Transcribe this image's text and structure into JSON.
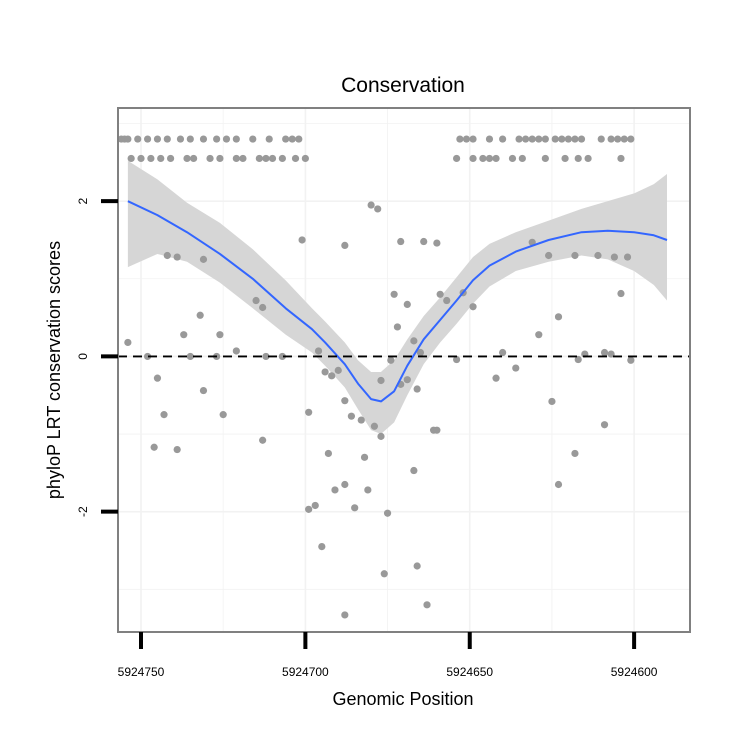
{
  "chart_data": {
    "type": "scatter",
    "title": "Conservation",
    "xlabel": "Genomic Position",
    "ylabel": "phyloP LRT conservation scores",
    "x_reversed": true,
    "xlim": [
      5924757,
      5924583
    ],
    "ylim": [
      -3.55,
      3.2
    ],
    "x_ticks": [
      5924750,
      5924700,
      5924650,
      5924600
    ],
    "x_tick_labels": [
      "5924750",
      "5924700",
      "5924650",
      "5924600"
    ],
    "y_ticks": [
      -2,
      0,
      2
    ],
    "y_tick_labels": [
      "-2",
      "0",
      "2"
    ],
    "grid": true,
    "reference_line": {
      "y": 0,
      "style": "dashed"
    },
    "colors": {
      "points": "#999999",
      "smooth_line": "#3366ff",
      "ribbon": "#d6d6d6",
      "panel_border": "#808080",
      "grid": "#f2f2f2"
    },
    "points": [
      [
        5924756,
        2.8
      ],
      [
        5924755,
        2.8
      ],
      [
        5924754,
        2.8
      ],
      [
        5924751,
        2.8
      ],
      [
        5924748,
        2.8
      ],
      [
        5924745,
        2.8
      ],
      [
        5924742,
        2.8
      ],
      [
        5924738,
        2.8
      ],
      [
        5924735,
        2.8
      ],
      [
        5924731,
        2.8
      ],
      [
        5924727,
        2.8
      ],
      [
        5924724,
        2.8
      ],
      [
        5924721,
        2.8
      ],
      [
        5924716,
        2.8
      ],
      [
        5924711,
        2.8
      ],
      [
        5924706,
        2.8
      ],
      [
        5924704,
        2.8
      ],
      [
        5924702,
        2.8
      ],
      [
        5924653,
        2.8
      ],
      [
        5924651,
        2.8
      ],
      [
        5924649,
        2.8
      ],
      [
        5924644,
        2.8
      ],
      [
        5924640,
        2.8
      ],
      [
        5924635,
        2.8
      ],
      [
        5924633,
        2.8
      ],
      [
        5924631,
        2.8
      ],
      [
        5924629,
        2.8
      ],
      [
        5924627,
        2.8
      ],
      [
        5924624,
        2.8
      ],
      [
        5924622,
        2.8
      ],
      [
        5924620,
        2.8
      ],
      [
        5924618,
        2.8
      ],
      [
        5924616,
        2.8
      ],
      [
        5924610,
        2.8
      ],
      [
        5924607,
        2.8
      ],
      [
        5924605,
        2.8
      ],
      [
        5924603,
        2.8
      ],
      [
        5924601,
        2.8
      ],
      [
        5924753,
        2.55
      ],
      [
        5924750,
        2.55
      ],
      [
        5924747,
        2.55
      ],
      [
        5924744,
        2.55
      ],
      [
        5924741,
        2.55
      ],
      [
        5924736,
        2.55
      ],
      [
        5924734,
        2.55
      ],
      [
        5924729,
        2.55
      ],
      [
        5924726,
        2.55
      ],
      [
        5924721,
        2.55
      ],
      [
        5924719,
        2.55
      ],
      [
        5924714,
        2.55
      ],
      [
        5924712,
        2.55
      ],
      [
        5924710,
        2.55
      ],
      [
        5924707,
        2.55
      ],
      [
        5924703,
        2.55
      ],
      [
        5924700,
        2.55
      ],
      [
        5924654,
        2.55
      ],
      [
        5924649,
        2.55
      ],
      [
        5924646,
        2.55
      ],
      [
        5924644,
        2.55
      ],
      [
        5924642,
        2.55
      ],
      [
        5924637,
        2.55
      ],
      [
        5924634,
        2.55
      ],
      [
        5924627,
        2.55
      ],
      [
        5924621,
        2.55
      ],
      [
        5924617,
        2.55
      ],
      [
        5924614,
        2.55
      ],
      [
        5924604,
        2.55
      ],
      [
        5924701,
        1.5
      ],
      [
        5924688,
        1.43
      ],
      [
        5924680,
        1.95
      ],
      [
        5924678,
        1.9
      ],
      [
        5924671,
        1.48
      ],
      [
        5924664,
        1.48
      ],
      [
        5924660,
        1.46
      ],
      [
        5924631,
        1.47
      ],
      [
        5924626,
        1.3
      ],
      [
        5924618,
        1.3
      ],
      [
        5924611,
        1.3
      ],
      [
        5924606,
        1.28
      ],
      [
        5924602,
        1.28
      ],
      [
        5924742,
        1.3
      ],
      [
        5924739,
        1.28
      ],
      [
        5924731,
        1.25
      ],
      [
        5924754,
        0.18
      ],
      [
        5924737,
        0.28
      ],
      [
        5924732,
        0.53
      ],
      [
        5924726,
        0.28
      ],
      [
        5924721,
        0.07
      ],
      [
        5924715,
        0.72
      ],
      [
        5924713,
        0.63
      ],
      [
        5924696,
        0.07
      ],
      [
        5924673,
        0.8
      ],
      [
        5924672,
        0.38
      ],
      [
        5924669,
        0.67
      ],
      [
        5924667,
        0.2
      ],
      [
        5924665,
        0.05
      ],
      [
        5924659,
        0.8
      ],
      [
        5924657,
        0.72
      ],
      [
        5924652,
        0.82
      ],
      [
        5924649,
        0.64
      ],
      [
        5924640,
        0.05
      ],
      [
        5924636,
        -0.15
      ],
      [
        5924629,
        0.28
      ],
      [
        5924623,
        0.51
      ],
      [
        5924617,
        -0.04
      ],
      [
        5924615,
        0.03
      ],
      [
        5924609,
        0.05
      ],
      [
        5924607,
        0.03
      ],
      [
        5924604,
        0.81
      ],
      [
        5924601,
        -0.05
      ],
      [
        5924748,
        0.0
      ],
      [
        5924745,
        -0.28
      ],
      [
        5924743,
        -0.75
      ],
      [
        5924735,
        0.0
      ],
      [
        5924731,
        -0.44
      ],
      [
        5924727,
        0.0
      ],
      [
        5924712,
        0.0
      ],
      [
        5924707,
        0.0
      ],
      [
        5924694,
        -0.2
      ],
      [
        5924690,
        -0.18
      ],
      [
        5924692,
        -0.25
      ],
      [
        5924688,
        -0.57
      ],
      [
        5924686,
        -0.77
      ],
      [
        5924683,
        -0.82
      ],
      [
        5924679,
        -0.9
      ],
      [
        5924677,
        -0.31
      ],
      [
        5924674,
        -0.05
      ],
      [
        5924671,
        -0.36
      ],
      [
        5924669,
        -0.3
      ],
      [
        5924666,
        -0.42
      ],
      [
        5924661,
        -0.95
      ],
      [
        5924660,
        -0.95
      ],
      [
        5924654,
        -0.04
      ],
      [
        5924642,
        -0.28
      ],
      [
        5924625,
        -0.58
      ],
      [
        5924746,
        -1.17
      ],
      [
        5924739,
        -1.2
      ],
      [
        5924725,
        -0.75
      ],
      [
        5924713,
        -1.08
      ],
      [
        5924699,
        -0.72
      ],
      [
        5924693,
        -1.25
      ],
      [
        5924691,
        -1.72
      ],
      [
        5924688,
        -1.65
      ],
      [
        5924682,
        -1.3
      ],
      [
        5924681,
        -1.72
      ],
      [
        5924677,
        -1.03
      ],
      [
        5924667,
        -1.47
      ],
      [
        5924623,
        -1.65
      ],
      [
        5924618,
        -1.25
      ],
      [
        5924609,
        -0.88
      ],
      [
        5924699,
        -1.97
      ],
      [
        5924697,
        -1.92
      ],
      [
        5924695,
        -2.45
      ],
      [
        5924685,
        -1.95
      ],
      [
        5924675,
        -2.02
      ],
      [
        5924676,
        -2.8
      ],
      [
        5924666,
        -2.7
      ],
      [
        5924663,
        -3.2
      ],
      [
        5924688,
        -3.33
      ]
    ],
    "smooth": [
      [
        5924754,
        2.0
      ],
      [
        5924745,
        1.82
      ],
      [
        5924736,
        1.6
      ],
      [
        5924726,
        1.32
      ],
      [
        5924716,
        1.0
      ],
      [
        5924706,
        0.62
      ],
      [
        5924698,
        0.35
      ],
      [
        5924694,
        0.18
      ],
      [
        5924688,
        -0.1
      ],
      [
        5924684,
        -0.35
      ],
      [
        5924680,
        -0.55
      ],
      [
        5924677,
        -0.58
      ],
      [
        5924673,
        -0.45
      ],
      [
        5924669,
        -0.12
      ],
      [
        5924664,
        0.22
      ],
      [
        5924659,
        0.47
      ],
      [
        5924654,
        0.72
      ],
      [
        5924649,
        0.98
      ],
      [
        5924644,
        1.17
      ],
      [
        5924636,
        1.35
      ],
      [
        5924626,
        1.5
      ],
      [
        5924616,
        1.6
      ],
      [
        5924608,
        1.62
      ],
      [
        5924600,
        1.6
      ],
      [
        5924594,
        1.56
      ],
      [
        5924590,
        1.5
      ]
    ],
    "ribbon_upper": [
      [
        5924754,
        2.52
      ],
      [
        5924745,
        2.28
      ],
      [
        5924736,
        1.98
      ],
      [
        5924726,
        1.72
      ],
      [
        5924716,
        1.38
      ],
      [
        5924706,
        0.98
      ],
      [
        5924698,
        0.62
      ],
      [
        5924694,
        0.45
      ],
      [
        5924688,
        0.18
      ],
      [
        5924684,
        -0.05
      ],
      [
        5924680,
        -0.2
      ],
      [
        5924677,
        -0.2
      ],
      [
        5924673,
        -0.05
      ],
      [
        5924669,
        0.22
      ],
      [
        5924664,
        0.52
      ],
      [
        5924659,
        0.76
      ],
      [
        5924654,
        1.02
      ],
      [
        5924649,
        1.28
      ],
      [
        5924644,
        1.45
      ],
      [
        5924636,
        1.6
      ],
      [
        5924626,
        1.75
      ],
      [
        5924616,
        1.9
      ],
      [
        5924608,
        2.0
      ],
      [
        5924600,
        2.1
      ],
      [
        5924594,
        2.22
      ],
      [
        5924590,
        2.35
      ]
    ],
    "ribbon_lower": [
      [
        5924754,
        1.15
      ],
      [
        5924745,
        1.32
      ],
      [
        5924736,
        1.22
      ],
      [
        5924726,
        0.95
      ],
      [
        5924716,
        0.62
      ],
      [
        5924706,
        0.28
      ],
      [
        5924698,
        0.05
      ],
      [
        5924694,
        -0.12
      ],
      [
        5924688,
        -0.4
      ],
      [
        5924684,
        -0.68
      ],
      [
        5924680,
        -0.95
      ],
      [
        5924677,
        -1.0
      ],
      [
        5924673,
        -0.85
      ],
      [
        5924669,
        -0.5
      ],
      [
        5924664,
        -0.1
      ],
      [
        5924659,
        0.18
      ],
      [
        5924654,
        0.42
      ],
      [
        5924649,
        0.68
      ],
      [
        5924644,
        0.9
      ],
      [
        5924636,
        1.1
      ],
      [
        5924626,
        1.22
      ],
      [
        5924616,
        1.3
      ],
      [
        5924608,
        1.25
      ],
      [
        5924600,
        1.1
      ],
      [
        5924594,
        0.92
      ],
      [
        5924590,
        0.72
      ]
    ]
  }
}
